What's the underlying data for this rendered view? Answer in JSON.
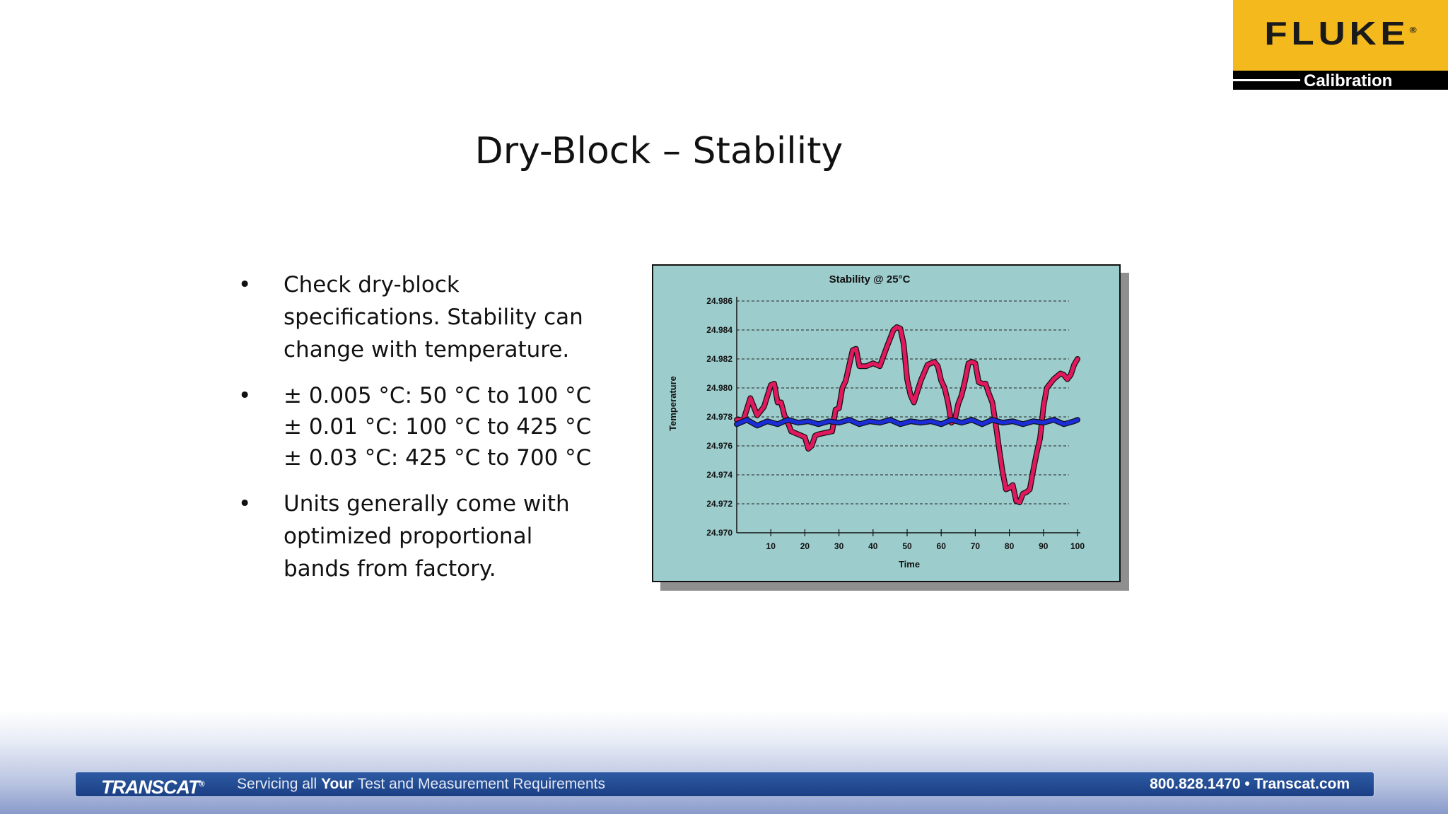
{
  "logo": {
    "brand": "FLUKE",
    "mark": "®",
    "sub": "Calibration"
  },
  "slide": {
    "title": "Dry-Block – Stability",
    "bullets": [
      {
        "symbol": "•",
        "lines": [
          "Check dry-block specifications. Stability can change with temperature."
        ]
      },
      {
        "symbol": "•",
        "lines": [
          "± 0.005 °C: 50 °C to 100 °C",
          "± 0.01 °C: 100 °C to 425 °C",
          "± 0.03 °C: 425 °C to 700 °C"
        ]
      },
      {
        "symbol": "•",
        "lines": [
          "Units generally come with optimized proportional bands from factory."
        ]
      }
    ]
  },
  "chart_data": {
    "type": "line",
    "title": "Stability @ 25°C",
    "xlabel": "Time",
    "ylabel": "Temperature",
    "xlim": [
      0,
      100
    ],
    "ylim": [
      24.97,
      24.986
    ],
    "x_ticks": [
      "10",
      "20",
      "30",
      "40",
      "50",
      "60",
      "70",
      "80",
      "90",
      "100"
    ],
    "y_ticks": [
      "24.986",
      "24.984",
      "24.982",
      "24.980",
      "24.978",
      "24.976",
      "24.974",
      "24.972",
      "24.970"
    ],
    "grid": "horizontal dashed",
    "background": "#9dcccc",
    "series": [
      {
        "color": "#e0195f",
        "x": [
          0,
          2,
          4,
          6,
          8,
          10,
          11,
          12,
          13,
          14,
          15,
          16,
          18,
          20,
          21,
          22,
          23,
          24,
          26,
          28,
          29,
          30,
          31,
          32,
          34,
          35,
          36,
          38,
          40,
          42,
          44,
          46,
          47,
          48,
          49,
          50,
          51,
          52,
          54,
          56,
          58,
          59,
          60,
          61,
          62,
          63,
          64,
          65,
          66,
          67,
          68,
          69,
          70,
          71,
          72,
          73,
          74,
          75,
          76,
          77,
          78,
          79,
          80,
          81,
          82,
          83,
          84,
          85,
          86,
          87,
          88,
          89,
          90,
          91,
          92,
          93,
          94,
          95,
          96,
          97,
          98,
          99,
          100
        ],
        "y": [
          24.9778,
          24.9778,
          24.9793,
          24.9781,
          24.9787,
          24.9802,
          24.9803,
          24.979,
          24.979,
          24.9781,
          24.9776,
          24.977,
          24.9768,
          24.9766,
          24.9758,
          24.976,
          24.9767,
          24.9768,
          24.9769,
          24.977,
          24.9785,
          24.9786,
          24.98,
          24.9805,
          24.9826,
          24.9827,
          24.9815,
          24.9815,
          24.9817,
          24.9815,
          24.9828,
          24.984,
          24.9842,
          24.9841,
          24.983,
          24.9806,
          24.9795,
          24.979,
          24.9805,
          24.9816,
          24.9818,
          24.9815,
          24.9805,
          24.98,
          24.979,
          24.9776,
          24.9778,
          24.9789,
          24.9795,
          24.9805,
          24.9817,
          24.9818,
          24.9817,
          24.9804,
          24.9803,
          24.9803,
          24.9796,
          24.979,
          24.9775,
          24.9758,
          24.9742,
          24.973,
          24.9731,
          24.9733,
          24.9722,
          24.9721,
          24.9727,
          24.9728,
          24.973,
          24.9743,
          24.9755,
          24.9765,
          24.9787,
          24.98,
          24.9803,
          24.9806,
          24.9808,
          24.981,
          24.9809,
          24.9806,
          24.9809,
          24.9816,
          24.982
        ]
      },
      {
        "color": "#1a2dd6",
        "x": [
          0,
          3,
          6,
          9,
          12,
          15,
          18,
          21,
          24,
          27,
          30,
          33,
          36,
          39,
          42,
          45,
          48,
          51,
          54,
          57,
          60,
          63,
          66,
          69,
          72,
          75,
          78,
          81,
          84,
          87,
          90,
          93,
          96,
          99,
          100
        ],
        "y": [
          24.9775,
          24.9778,
          24.9774,
          24.9777,
          24.9775,
          24.9778,
          24.9776,
          24.9777,
          24.9775,
          24.9777,
          24.9776,
          24.9778,
          24.9775,
          24.9777,
          24.9776,
          24.9778,
          24.9775,
          24.9777,
          24.9776,
          24.9777,
          24.9775,
          24.9778,
          24.9776,
          24.9778,
          24.9775,
          24.9778,
          24.9776,
          24.9777,
          24.9775,
          24.9777,
          24.9776,
          24.9778,
          24.9775,
          24.9777,
          24.9778
        ]
      }
    ]
  },
  "footer": {
    "brand": "TRANSCAT",
    "brand_mark": "®",
    "tag_pre": "Servicing all ",
    "tag_bold": "Your",
    "tag_post": " Test and Measurement Requirements",
    "contact": "800.828.1470  •  Transcat.com"
  }
}
